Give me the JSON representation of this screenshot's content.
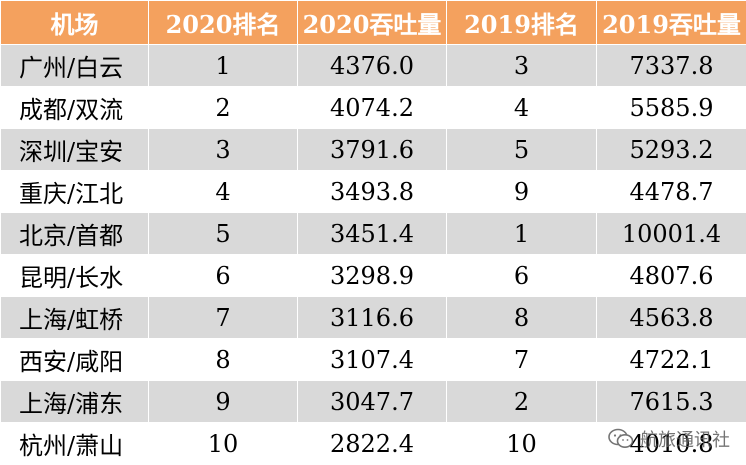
{
  "header": {
    "airport": "机场",
    "rank_2020": "2020排名",
    "throughput_2020": "2020吞吐量",
    "rank_2019": "2019排名",
    "throughput_2019": "2019吞吐量"
  },
  "rows": [
    {
      "airport": "广州/白云",
      "rank_2020": "1",
      "throughput_2020": "4376.0",
      "rank_2019": "3",
      "throughput_2019": "7337.8"
    },
    {
      "airport": "成都/双流",
      "rank_2020": "2",
      "throughput_2020": "4074.2",
      "rank_2019": "4",
      "throughput_2019": "5585.9"
    },
    {
      "airport": "深圳/宝安",
      "rank_2020": "3",
      "throughput_2020": "3791.6",
      "rank_2019": "5",
      "throughput_2019": "5293.2"
    },
    {
      "airport": "重庆/江北",
      "rank_2020": "4",
      "throughput_2020": "3493.8",
      "rank_2019": "9",
      "throughput_2019": "4478.7"
    },
    {
      "airport": "北京/首都",
      "rank_2020": "5",
      "throughput_2020": "3451.4",
      "rank_2019": "1",
      "throughput_2019": "10001.4"
    },
    {
      "airport": "昆明/长水",
      "rank_2020": "6",
      "throughput_2020": "3298.9",
      "rank_2019": "6",
      "throughput_2019": "4807.6"
    },
    {
      "airport": "上海/虹桥",
      "rank_2020": "7",
      "throughput_2020": "3116.6",
      "rank_2019": "8",
      "throughput_2019": "4563.8"
    },
    {
      "airport": "西安/咸阳",
      "rank_2020": "8",
      "throughput_2020": "3107.4",
      "rank_2019": "7",
      "throughput_2019": "4722.1"
    },
    {
      "airport": "上海/浦东",
      "rank_2020": "9",
      "throughput_2020": "3047.7",
      "rank_2019": "2",
      "throughput_2019": "7615.3"
    },
    {
      "airport": "杭州/萧山",
      "rank_2020": "10",
      "throughput_2020": "2822.4",
      "rank_2019": "10",
      "throughput_2019": "4010.8"
    }
  ],
  "watermark": {
    "icon": "wechat-icon",
    "text": "航旅通讯社"
  },
  "colors": {
    "header_bg": "#f4a15e",
    "header_text": "#ffffff",
    "row_alt_bg": "#d9d9d9",
    "row_bg": "#ffffff"
  }
}
